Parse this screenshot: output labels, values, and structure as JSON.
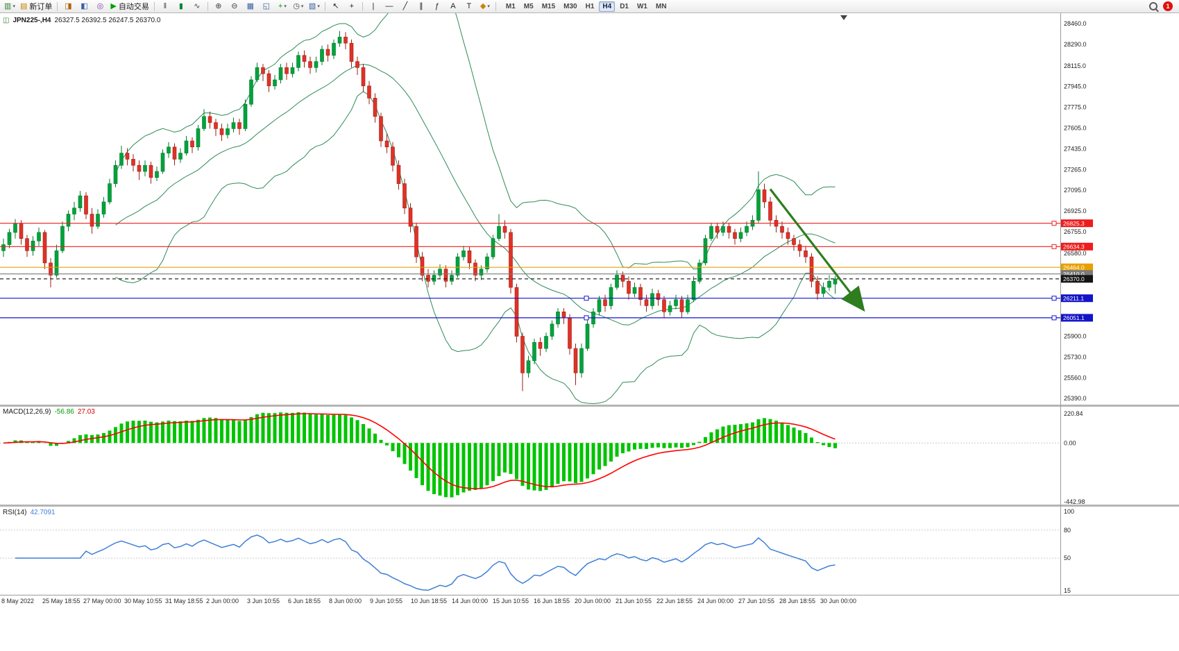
{
  "toolbar": {
    "items": [
      {
        "name": "new-chart",
        "glyph": "▥",
        "color": "#2e7d32",
        "dropdown": true
      },
      {
        "name": "new-order",
        "glyph": "▤",
        "color": "#c77f00",
        "label": "新订单"
      },
      {
        "type": "sep"
      },
      {
        "name": "market-watch",
        "glyph": "◨",
        "color": "#b06000"
      },
      {
        "name": "data-window",
        "glyph": "◧",
        "color": "#3a5fa0"
      },
      {
        "name": "navigator",
        "glyph": "◎",
        "color": "#7a3fa0"
      },
      {
        "name": "auto-trading",
        "glyph": "▶",
        "color": "#00a000",
        "label": "自动交易"
      },
      {
        "type": "sep"
      },
      {
        "name": "chart-bars",
        "glyph": "‖",
        "color": "#444"
      },
      {
        "name": "chart-candles",
        "glyph": "▮",
        "color": "#00843d"
      },
      {
        "name": "chart-line",
        "glyph": "∿",
        "color": "#444"
      },
      {
        "type": "sep"
      },
      {
        "name": "zoom-in",
        "glyph": "⊕",
        "color": "#444"
      },
      {
        "name": "zoom-out",
        "glyph": "⊖",
        "color": "#444"
      },
      {
        "name": "tile-windows",
        "glyph": "▦",
        "color": "#3a5fa0"
      },
      {
        "name": "cascade-windows",
        "glyph": "◱",
        "color": "#3a5fa0"
      },
      {
        "name": "indicators",
        "glyph": "+",
        "color": "#00a000",
        "dropdown": true
      },
      {
        "name": "periods",
        "glyph": "◷",
        "color": "#444",
        "dropdown": true
      },
      {
        "name": "templates",
        "glyph": "▧",
        "color": "#3a5fa0",
        "dropdown": true
      },
      {
        "type": "sep"
      },
      {
        "name": "cursor",
        "glyph": "↖",
        "color": "#222"
      },
      {
        "name": "crosshair",
        "glyph": "+",
        "color": "#222"
      },
      {
        "type": "sep"
      },
      {
        "name": "vertical-line",
        "glyph": "|",
        "color": "#222"
      },
      {
        "name": "horizontal-line",
        "glyph": "—",
        "color": "#222"
      },
      {
        "name": "trendline",
        "glyph": "╱",
        "color": "#222"
      },
      {
        "name": "equidistant-channel",
        "glyph": "∥",
        "color": "#222"
      },
      {
        "name": "fibonacci",
        "glyph": "ƒ",
        "color": "#222"
      },
      {
        "name": "text",
        "glyph": "A",
        "color": "#222"
      },
      {
        "name": "text-label",
        "glyph": "T",
        "color": "#222"
      },
      {
        "name": "shapes",
        "glyph": "◆",
        "color": "#cc8400",
        "dropdown": true
      },
      {
        "type": "sep"
      }
    ],
    "timeframes": [
      "M1",
      "M5",
      "M15",
      "M30",
      "H1",
      "H4",
      "D1",
      "W1",
      "MN"
    ],
    "active_timeframe": "H4",
    "notification_count": "1"
  },
  "chart": {
    "symbol": "JPN225-,H4",
    "ohlc": "26327.5 26392.5 26247.5 26370.0",
    "price_ticks": [
      "28460.0",
      "28290.0",
      "28115.0",
      "27945.0",
      "27775.0",
      "27605.0",
      "27435.0",
      "27265.0",
      "27095.0",
      "26925.0",
      "26755.0",
      "26580.0",
      "25900.0",
      "25730.0",
      "25560.0",
      "25390.0"
    ],
    "hlines": [
      {
        "price": 26825.3,
        "label": "26825.3",
        "color": "#ee1c1c",
        "style": "solid",
        "handles": [
          "right"
        ]
      },
      {
        "price": 26634.3,
        "label": "26634.3",
        "color": "#ee1c1c",
        "style": "solid",
        "handles": [
          "right"
        ]
      },
      {
        "price": 26464.0,
        "label": "26464.0",
        "color": "#e8a000",
        "style": "solid",
        "handles": []
      },
      {
        "price": 26410.0,
        "label": "26410.0",
        "color": "#7a7a7a",
        "style": "solid",
        "handles": []
      },
      {
        "price": 26370.0,
        "label": "26370.0",
        "color": "#141414",
        "style": "dash",
        "handles": []
      },
      {
        "price": 26211.1,
        "label": "26211.1",
        "color": "#1414c8",
        "style": "solid",
        "handles": [
          "center",
          "right"
        ]
      },
      {
        "price": 26051.1,
        "label": "26051.1",
        "color": "#1414c8",
        "style": "solid",
        "handles": [
          "center",
          "right"
        ]
      }
    ],
    "time_labels": [
      "8 May 2022",
      "25 May 18:55",
      "27 May 00:00",
      "30 May 10:55",
      "31 May 18:55",
      "2 Jun 00:00",
      "3 Jun 10:55",
      "6 Jun 18:55",
      "8 Jun 00:00",
      "9 Jun 10:55",
      "10 Jun 18:55",
      "14 Jun 00:00",
      "15 Jun 10:55",
      "16 Jun 18:55",
      "20 Jun 00:00",
      "21 Jun 10:55",
      "22 Jun 18:55",
      "24 Jun 00:00",
      "27 Jun 10:55",
      "28 Jun 18:55",
      "30 Jun 00:00"
    ],
    "arrow": {
      "from": {
        "i": 130,
        "price": 27105
      },
      "to": {
        "i": 145.6,
        "price": 26130
      },
      "color": "#2e7d1e"
    }
  },
  "macd": {
    "label": "MACD(12,26,9)",
    "value": "-56.86",
    "signal_value": "27.03",
    "ticks": [
      "220.84",
      "0.00",
      "-442.98"
    ],
    "params": {
      "fast": 12,
      "slow": 26,
      "signal": 9
    }
  },
  "rsi": {
    "label": "RSI(14)",
    "value": "42.7091",
    "ticks": [
      "100",
      "80",
      "50",
      "15"
    ],
    "period": 14
  },
  "colors": {
    "up": "#00a33c",
    "up_dark": "#007a2c",
    "down": "#e03226",
    "down_dark": "#a3received1f16",
    "band": "#2e8b57",
    "macd_hist": "#00c400",
    "macd_signal": "#ff0000",
    "rsi": "#3f7fd6"
  },
  "chart_data": {
    "type": "candlestick",
    "symbol": "JPN225-",
    "timeframe": "H4",
    "price_range": [
      25390.0,
      28460.0
    ],
    "candles": [
      [
        26600,
        26700,
        26550,
        26650
      ],
      [
        26650,
        26780,
        26620,
        26750
      ],
      [
        26750,
        26860,
        26700,
        26820
      ],
      [
        26820,
        26850,
        26650,
        26700
      ],
      [
        26700,
        26730,
        26550,
        26600
      ],
      [
        26600,
        26720,
        26560,
        26680
      ],
      [
        26680,
        26790,
        26640,
        26750
      ],
      [
        26750,
        26770,
        26450,
        26500
      ],
      [
        26500,
        26540,
        26300,
        26400
      ],
      [
        26400,
        26650,
        26380,
        26600
      ],
      [
        26600,
        26840,
        26580,
        26800
      ],
      [
        26800,
        26930,
        26760,
        26900
      ],
      [
        26900,
        27000,
        26850,
        26950
      ],
      [
        26950,
        27090,
        26920,
        27050
      ],
      [
        27050,
        27080,
        26860,
        26900
      ],
      [
        26900,
        26950,
        26740,
        26800
      ],
      [
        26800,
        26940,
        26780,
        26900
      ],
      [
        26900,
        27040,
        26870,
        27000
      ],
      [
        27000,
        27190,
        26980,
        27150
      ],
      [
        27150,
        27340,
        27120,
        27300
      ],
      [
        27300,
        27460,
        27270,
        27400
      ],
      [
        27400,
        27440,
        27300,
        27350
      ],
      [
        27350,
        27390,
        27250,
        27300
      ],
      [
        27300,
        27340,
        27180,
        27250
      ],
      [
        27250,
        27340,
        27210,
        27300
      ],
      [
        27300,
        27330,
        27150,
        27200
      ],
      [
        27200,
        27290,
        27170,
        27250
      ],
      [
        27250,
        27430,
        27230,
        27400
      ],
      [
        27400,
        27490,
        27360,
        27450
      ],
      [
        27450,
        27480,
        27300,
        27350
      ],
      [
        27350,
        27440,
        27320,
        27400
      ],
      [
        27400,
        27540,
        27380,
        27500
      ],
      [
        27500,
        27530,
        27400,
        27450
      ],
      [
        27450,
        27630,
        27420,
        27600
      ],
      [
        27600,
        27760,
        27580,
        27700
      ],
      [
        27700,
        27740,
        27600,
        27650
      ],
      [
        27650,
        27680,
        27540,
        27600
      ],
      [
        27600,
        27640,
        27500,
        27550
      ],
      [
        27550,
        27640,
        27520,
        27600
      ],
      [
        27600,
        27690,
        27570,
        27650
      ],
      [
        27650,
        27680,
        27550,
        27600
      ],
      [
        27600,
        27840,
        27580,
        27800
      ],
      [
        27800,
        28030,
        27780,
        28000
      ],
      [
        28000,
        28140,
        27980,
        28100
      ],
      [
        28100,
        28130,
        27990,
        28050
      ],
      [
        28050,
        28080,
        27900,
        27950
      ],
      [
        27950,
        28040,
        27920,
        28000
      ],
      [
        28000,
        28130,
        27970,
        28100
      ],
      [
        28100,
        28140,
        28000,
        28050
      ],
      [
        28050,
        28140,
        28020,
        28100
      ],
      [
        28100,
        28230,
        28070,
        28200
      ],
      [
        28200,
        28240,
        28100,
        28150
      ],
      [
        28150,
        28190,
        28050,
        28100
      ],
      [
        28100,
        28190,
        28060,
        28150
      ],
      [
        28150,
        28280,
        28120,
        28250
      ],
      [
        28250,
        28290,
        28150,
        28200
      ],
      [
        28200,
        28330,
        28170,
        28300
      ],
      [
        28300,
        28400,
        28270,
        28350
      ],
      [
        28350,
        28390,
        28250,
        28300
      ],
      [
        28300,
        28330,
        28100,
        28150
      ],
      [
        28150,
        28190,
        28040,
        28100
      ],
      [
        28100,
        28130,
        27900,
        27950
      ],
      [
        27950,
        27990,
        27800,
        27850
      ],
      [
        27850,
        27890,
        27650,
        27700
      ],
      [
        27700,
        27730,
        27450,
        27500
      ],
      [
        27500,
        27560,
        27400,
        27450
      ],
      [
        27450,
        27490,
        27250,
        27300
      ],
      [
        27300,
        27340,
        27100,
        27150
      ],
      [
        27150,
        27190,
        26900,
        26950
      ],
      [
        26950,
        26990,
        26750,
        26800
      ],
      [
        26800,
        26830,
        26500,
        26550
      ],
      [
        26550,
        26590,
        26350,
        26400
      ],
      [
        26400,
        26450,
        26300,
        26350
      ],
      [
        26350,
        26440,
        26320,
        26400
      ],
      [
        26400,
        26490,
        26370,
        26450
      ],
      [
        26450,
        26480,
        26300,
        26350
      ],
      [
        26350,
        26440,
        26320,
        26400
      ],
      [
        26400,
        26580,
        26380,
        26550
      ],
      [
        26550,
        26640,
        26520,
        26600
      ],
      [
        26600,
        26630,
        26450,
        26500
      ],
      [
        26500,
        26530,
        26350,
        26400
      ],
      [
        26400,
        26480,
        26360,
        26450
      ],
      [
        26450,
        26580,
        26420,
        26550
      ],
      [
        26550,
        26730,
        26530,
        26700
      ],
      [
        26700,
        26900,
        26680,
        26800
      ],
      [
        26800,
        26850,
        26700,
        26750
      ],
      [
        26750,
        26780,
        26250,
        26300
      ],
      [
        26300,
        26330,
        25850,
        25900
      ],
      [
        25900,
        25930,
        25450,
        25600
      ],
      [
        25600,
        25740,
        25560,
        25700
      ],
      [
        25700,
        25880,
        25670,
        25850
      ],
      [
        25850,
        25890,
        25740,
        25800
      ],
      [
        25800,
        25930,
        25770,
        25900
      ],
      [
        25900,
        26030,
        25870,
        26000
      ],
      [
        26000,
        26130,
        25970,
        26100
      ],
      [
        26100,
        26130,
        26000,
        26050
      ],
      [
        26050,
        26080,
        25750,
        25800
      ],
      [
        25800,
        25840,
        25500,
        25600
      ],
      [
        25600,
        25840,
        25560,
        25800
      ],
      [
        25800,
        26030,
        25780,
        26000
      ],
      [
        26000,
        26130,
        25970,
        26100
      ],
      [
        26100,
        26230,
        26070,
        26200
      ],
      [
        26200,
        26240,
        26100,
        26150
      ],
      [
        26150,
        26330,
        26120,
        26300
      ],
      [
        26300,
        26440,
        26280,
        26400
      ],
      [
        26400,
        26430,
        26300,
        26350
      ],
      [
        26350,
        26390,
        26200,
        26250
      ],
      [
        26250,
        26340,
        26220,
        26300
      ],
      [
        26300,
        26330,
        26150,
        26200
      ],
      [
        26200,
        26240,
        26100,
        26150
      ],
      [
        26150,
        26290,
        26120,
        26250
      ],
      [
        26250,
        26280,
        26150,
        26200
      ],
      [
        26200,
        26230,
        26050,
        26100
      ],
      [
        26100,
        26190,
        26070,
        26150
      ],
      [
        26150,
        26240,
        26120,
        26200
      ],
      [
        26200,
        26230,
        26050,
        26100
      ],
      [
        26100,
        26240,
        26080,
        26200
      ],
      [
        26200,
        26390,
        26180,
        26350
      ],
      [
        26350,
        26530,
        26330,
        26500
      ],
      [
        26500,
        26730,
        26480,
        26700
      ],
      [
        26700,
        26830,
        26680,
        26800
      ],
      [
        26800,
        26830,
        26700,
        26750
      ],
      [
        26750,
        26840,
        26720,
        26800
      ],
      [
        26800,
        26830,
        26700,
        26750
      ],
      [
        26750,
        26780,
        26650,
        26700
      ],
      [
        26700,
        26790,
        26670,
        26750
      ],
      [
        26750,
        26840,
        26720,
        26800
      ],
      [
        26800,
        26890,
        26770,
        26850
      ],
      [
        26850,
        27250,
        26830,
        27100
      ],
      [
        27100,
        27150,
        26950,
        27000
      ],
      [
        27000,
        27040,
        26800,
        26850
      ],
      [
        26850,
        26890,
        26750,
        26800
      ],
      [
        26800,
        26840,
        26700,
        26750
      ],
      [
        26750,
        26790,
        26650,
        26700
      ],
      [
        26700,
        26730,
        26600,
        26650
      ],
      [
        26650,
        26690,
        26550,
        26600
      ],
      [
        26600,
        26640,
        26500,
        26550
      ],
      [
        26550,
        26580,
        26300,
        26350
      ],
      [
        26350,
        26390,
        26200,
        26250
      ],
      [
        26250,
        26340,
        26220,
        26300
      ],
      [
        26300,
        26400,
        26270,
        26350
      ],
      [
        26327.5,
        26392.5,
        26247.5,
        26370
      ]
    ]
  }
}
